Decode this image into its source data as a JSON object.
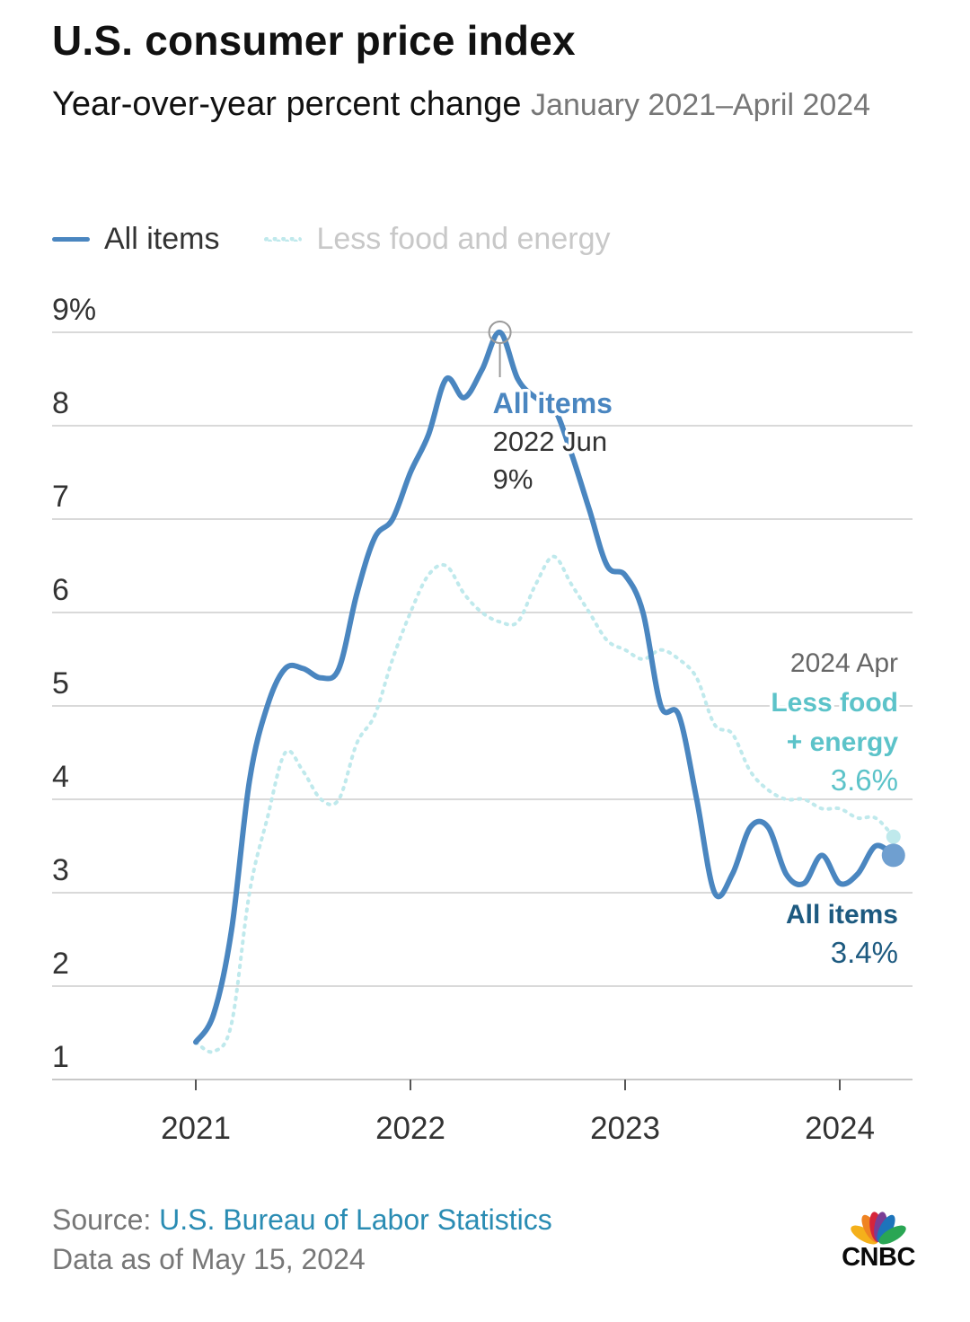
{
  "title": "U.S. consumer price index",
  "subtitle": "Year-over-year percent change",
  "date_range": "January 2021–April 2024",
  "legend": {
    "all_items": "All items",
    "core": "Less food and energy"
  },
  "colors": {
    "all_items": "#4a86c0",
    "core": "#bfe9ec",
    "core_label": "#5cc3c9",
    "all_items_label": "#1d5a80",
    "grid": "#d9d9d9",
    "axis_text": "#333333"
  },
  "chart_data": {
    "type": "line",
    "title": "U.S. consumer price index",
    "subtitle": "Year-over-year percent change",
    "xlabel": "",
    "ylabel": "",
    "x_ticks": [
      "2021",
      "2022",
      "2023",
      "2024"
    ],
    "y_ticks": [
      "1",
      "2",
      "3",
      "4",
      "5",
      "6",
      "7",
      "8",
      "9%"
    ],
    "ylim": [
      1,
      9
    ],
    "months": [
      "2021-01",
      "2021-02",
      "2021-03",
      "2021-04",
      "2021-05",
      "2021-06",
      "2021-07",
      "2021-08",
      "2021-09",
      "2021-10",
      "2021-11",
      "2021-12",
      "2022-01",
      "2022-02",
      "2022-03",
      "2022-04",
      "2022-05",
      "2022-06",
      "2022-07",
      "2022-08",
      "2022-09",
      "2022-10",
      "2022-11",
      "2022-12",
      "2023-01",
      "2023-02",
      "2023-03",
      "2023-04",
      "2023-05",
      "2023-06",
      "2023-07",
      "2023-08",
      "2023-09",
      "2023-10",
      "2023-11",
      "2023-12",
      "2024-01",
      "2024-02",
      "2024-03",
      "2024-04"
    ],
    "series": [
      {
        "name": "All items",
        "values": [
          1.4,
          1.7,
          2.6,
          4.2,
          5.0,
          5.4,
          5.4,
          5.3,
          5.4,
          6.2,
          6.8,
          7.0,
          7.5,
          7.9,
          8.5,
          8.3,
          8.6,
          9.0,
          8.5,
          8.3,
          8.2,
          7.7,
          7.1,
          6.5,
          6.4,
          6.0,
          5.0,
          4.9,
          4.0,
          3.0,
          3.2,
          3.7,
          3.7,
          3.2,
          3.1,
          3.4,
          3.1,
          3.2,
          3.5,
          3.4
        ]
      },
      {
        "name": "Less food and energy",
        "values": [
          1.4,
          1.3,
          1.6,
          3.0,
          3.8,
          4.5,
          4.3,
          4.0,
          4.0,
          4.6,
          4.9,
          5.5,
          6.0,
          6.4,
          6.5,
          6.2,
          6.0,
          5.9,
          5.9,
          6.3,
          6.6,
          6.3,
          6.0,
          5.7,
          5.6,
          5.5,
          5.6,
          5.5,
          5.3,
          4.8,
          4.7,
          4.3,
          4.1,
          4.0,
          4.0,
          3.9,
          3.9,
          3.8,
          3.8,
          3.6
        ]
      }
    ],
    "annotations": {
      "peak": {
        "series": "All items",
        "label": "All items",
        "date": "2022 Jun",
        "value": "9%"
      },
      "latest_date": "2024 Apr",
      "latest_core": {
        "label_line1": "Less food",
        "label_line2": "+ energy",
        "value": "3.6%"
      },
      "latest_all": {
        "label": "All items",
        "value": "3.4%"
      }
    }
  },
  "footer": {
    "source_prefix": "Source:",
    "source_name": "U.S. Bureau of Labor Statistics",
    "data_as_of": "Data as of May 15, 2024"
  },
  "logo": {
    "text": "CNBC",
    "feather_colors": [
      "#f4b01b",
      "#ef8322",
      "#d6243b",
      "#7a3d95",
      "#1d74bb",
      "#2aa654"
    ]
  }
}
